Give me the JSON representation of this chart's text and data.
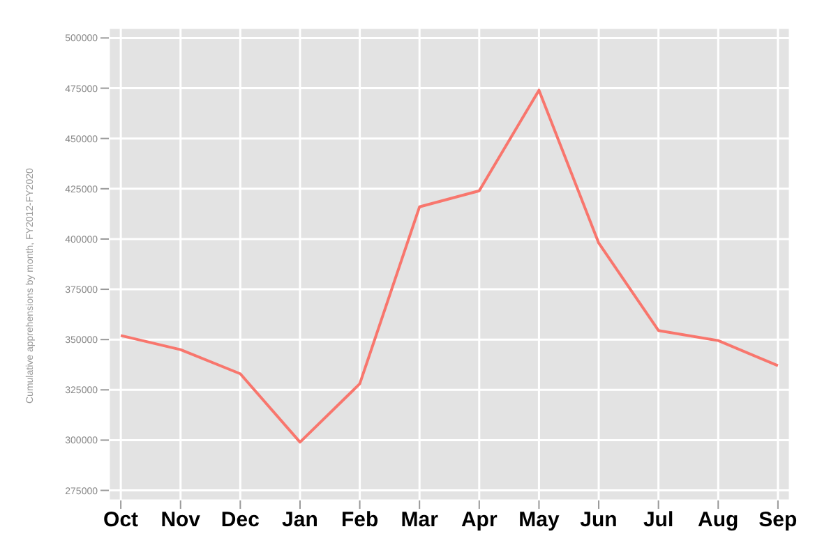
{
  "chart_data": {
    "type": "line",
    "ylabel": "Cumulative apprehensions by month, FY2012-FY2020",
    "categories": [
      "Oct",
      "Nov",
      "Dec",
      "Jan",
      "Feb",
      "Mar",
      "Apr",
      "May",
      "Jun",
      "Jul",
      "Aug",
      "Sep"
    ],
    "series": [
      {
        "color": "#f8766d",
        "values": [
          352000,
          345000,
          333000,
          299000,
          328000,
          416000,
          424000,
          474000,
          398000,
          354500,
          349500,
          337000
        ]
      }
    ],
    "ylim": [
      270000,
      505000
    ],
    "yticks": [
      275000,
      300000,
      325000,
      350000,
      375000,
      400000,
      425000,
      450000,
      475000,
      500000
    ],
    "grid": true,
    "legend": false
  }
}
